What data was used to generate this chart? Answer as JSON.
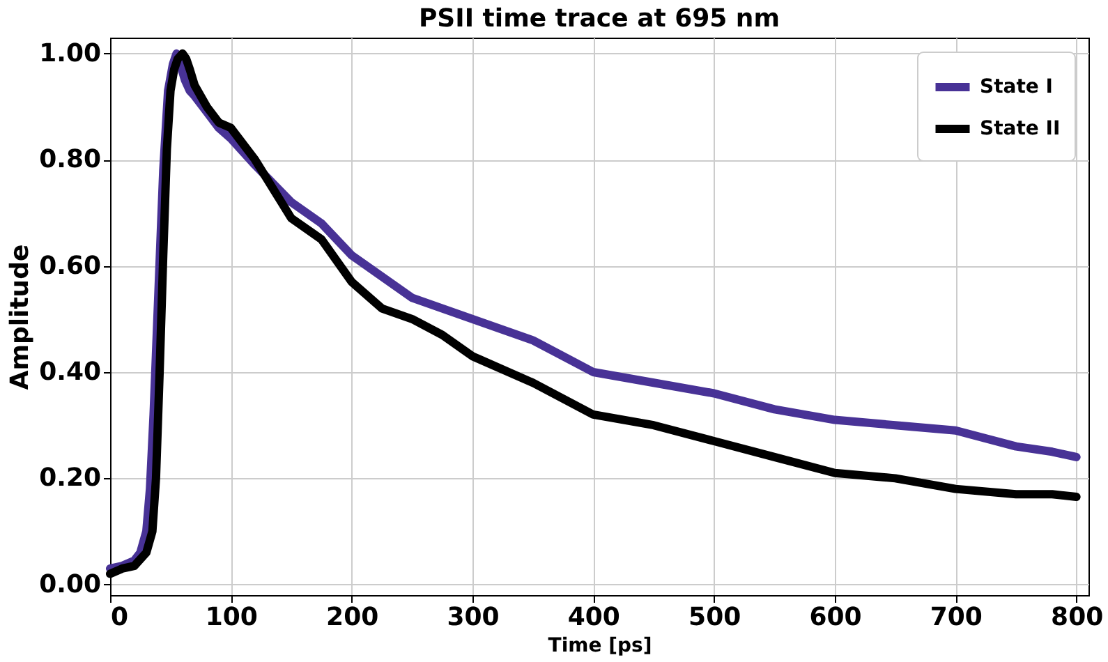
{
  "chart_data": {
    "type": "line",
    "title": "PSII time trace at 695 nm",
    "xlabel": "Time [ps]",
    "ylabel": "Amplitude",
    "xlim": [
      0,
      810
    ],
    "ylim": [
      -0.02,
      1.03
    ],
    "xticks": [
      0,
      100,
      200,
      300,
      400,
      500,
      600,
      700,
      800
    ],
    "yticks": [
      {
        "value": 0,
        "label": "0.00"
      },
      {
        "value": 0.2,
        "label": "0.20"
      },
      {
        "value": 0.4,
        "label": "0.40"
      },
      {
        "value": 0.6,
        "label": "0.60"
      },
      {
        "value": 0.8,
        "label": "0.80"
      },
      {
        "value": 1,
        "label": "1.00"
      }
    ],
    "grid": true,
    "legend": "top right",
    "marker": "none",
    "line_style": "solid",
    "series": [
      {
        "name": "State I",
        "color": "#483296",
        "x": [
          0,
          10,
          20,
          25,
          30,
          33,
          36,
          40,
          44,
          48,
          52,
          55,
          58,
          62,
          66,
          70,
          80,
          90,
          100,
          120,
          150,
          175,
          200,
          225,
          250,
          275,
          300,
          350,
          400,
          450,
          500,
          550,
          600,
          650,
          700,
          750,
          780,
          800
        ],
        "values": [
          0.03,
          0.035,
          0.045,
          0.06,
          0.1,
          0.18,
          0.32,
          0.55,
          0.78,
          0.93,
          0.98,
          1.0,
          0.98,
          0.95,
          0.93,
          0.92,
          0.89,
          0.86,
          0.84,
          0.79,
          0.72,
          0.68,
          0.62,
          0.58,
          0.54,
          0.52,
          0.5,
          0.46,
          0.4,
          0.38,
          0.36,
          0.33,
          0.31,
          0.3,
          0.29,
          0.26,
          0.25,
          0.24
        ]
      },
      {
        "name": "State II",
        "color": "#000000",
        "x": [
          0,
          10,
          20,
          30,
          35,
          38,
          41,
          44,
          47,
          50,
          53,
          56,
          60,
          63,
          66,
          70,
          80,
          90,
          100,
          120,
          150,
          175,
          200,
          225,
          250,
          275,
          300,
          350,
          400,
          450,
          500,
          550,
          600,
          650,
          700,
          750,
          780,
          800
        ],
        "values": [
          0.02,
          0.03,
          0.035,
          0.06,
          0.1,
          0.2,
          0.4,
          0.62,
          0.82,
          0.93,
          0.97,
          0.99,
          1.0,
          0.99,
          0.97,
          0.94,
          0.9,
          0.87,
          0.86,
          0.8,
          0.69,
          0.65,
          0.57,
          0.52,
          0.5,
          0.47,
          0.43,
          0.38,
          0.32,
          0.3,
          0.27,
          0.24,
          0.21,
          0.2,
          0.18,
          0.17,
          0.17,
          0.165
        ]
      }
    ]
  }
}
